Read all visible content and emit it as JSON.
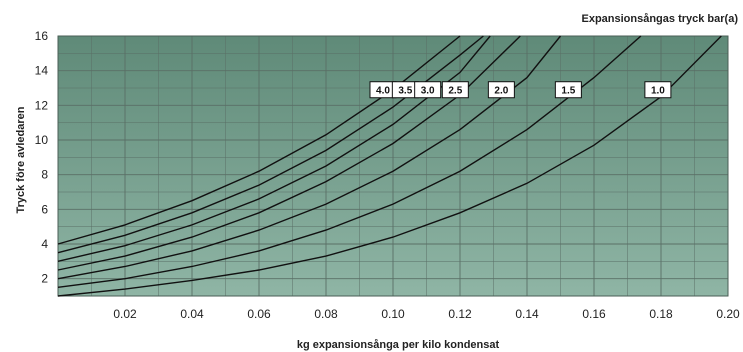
{
  "chart_data": {
    "type": "line",
    "title": "Expansionsångas tryck bar(a)",
    "xlabel": "kg expansionsånga per kilo kondensat",
    "ylabel": "Tryck före avledaren",
    "xlim": [
      0,
      0.2
    ],
    "ylim": [
      1,
      16
    ],
    "x_ticks": [
      "0.02",
      "0.04",
      "0.06",
      "0.08",
      "0.10",
      "0.12",
      "0.14",
      "0.16",
      "0.18",
      "0.20"
    ],
    "y_ticks": [
      "2",
      "4",
      "6",
      "8",
      "10",
      "12",
      "14",
      "16"
    ],
    "grid": true,
    "colors": {
      "plot_top": "#5f8a78",
      "plot_bottom": "#8fb5a5",
      "grid": "#5a6f66",
      "curve": "#111111"
    },
    "series": [
      {
        "name": "4.0",
        "x": [
          0,
          0.02,
          0.04,
          0.06,
          0.08,
          0.1,
          0.12
        ],
        "y": [
          4.0,
          5.1,
          6.5,
          8.2,
          10.3,
          12.9,
          16.0
        ]
      },
      {
        "name": "3.5",
        "x": [
          0,
          0.02,
          0.04,
          0.06,
          0.08,
          0.1,
          0.12,
          0.127
        ],
        "y": [
          3.5,
          4.5,
          5.8,
          7.4,
          9.4,
          11.9,
          14.9,
          16.0
        ]
      },
      {
        "name": "3.0",
        "x": [
          0,
          0.02,
          0.04,
          0.06,
          0.08,
          0.1,
          0.12,
          0.129
        ],
        "y": [
          3.0,
          3.9,
          5.1,
          6.6,
          8.5,
          10.9,
          13.9,
          16.0
        ]
      },
      {
        "name": "2.5",
        "x": [
          0,
          0.02,
          0.04,
          0.06,
          0.08,
          0.1,
          0.12,
          0.138
        ],
        "y": [
          2.5,
          3.3,
          4.4,
          5.8,
          7.6,
          9.8,
          12.6,
          16.0
        ]
      },
      {
        "name": "2.0",
        "x": [
          0,
          0.02,
          0.04,
          0.06,
          0.08,
          0.1,
          0.12,
          0.14,
          0.15
        ],
        "y": [
          2.0,
          2.7,
          3.6,
          4.8,
          6.3,
          8.2,
          10.6,
          13.6,
          16.0
        ]
      },
      {
        "name": "1.5",
        "x": [
          0,
          0.02,
          0.04,
          0.06,
          0.08,
          0.1,
          0.12,
          0.14,
          0.16,
          0.174
        ],
        "y": [
          1.5,
          2.0,
          2.7,
          3.6,
          4.8,
          6.3,
          8.2,
          10.6,
          13.6,
          16.0
        ]
      },
      {
        "name": "1.0",
        "x": [
          0,
          0.02,
          0.04,
          0.06,
          0.08,
          0.1,
          0.12,
          0.14,
          0.16,
          0.18,
          0.198
        ],
        "y": [
          1.0,
          1.4,
          1.9,
          2.5,
          3.3,
          4.4,
          5.8,
          7.5,
          9.7,
          12.5,
          16.0
        ]
      }
    ]
  }
}
